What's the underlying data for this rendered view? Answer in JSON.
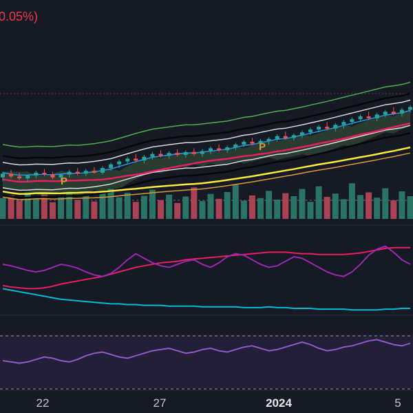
{
  "header": {
    "change_text": "0.05%)",
    "change_color": "#f23645"
  },
  "chart_data": {
    "type": "candlestick",
    "x_labels": [
      {
        "label": "22",
        "bold": false
      },
      {
        "label": "27",
        "bold": false
      },
      {
        "label": "2024",
        "bold": true
      },
      {
        "label": "5",
        "bold": false
      }
    ],
    "pivot_markers": [
      "P",
      "P"
    ],
    "colors": {
      "background": "#161a25",
      "up": "#26a69a",
      "down": "#ef5350",
      "vol_up": "#2e7d6b",
      "vol_down": "#b9485a",
      "ma_blue": "#2196f3",
      "ma_red": "#e91e63",
      "ma_white": "#d9dbe0",
      "ma_black": "#05070b",
      "ma_yellow": "#ffeb3b",
      "green_line": "#4caf50",
      "orange": "#d99a3a",
      "stoch_pink": "#e91e63",
      "stoch_purple": "#9c27b0",
      "cyan": "#00bcd4",
      "rsi_purple": "#8e5cc8"
    },
    "price_candles": [
      [
        40.0,
        40.6,
        39.6,
        40.4
      ],
      [
        40.4,
        40.8,
        39.9,
        40.1
      ],
      [
        40.1,
        40.5,
        39.7,
        39.9
      ],
      [
        39.9,
        40.3,
        39.5,
        40.2
      ],
      [
        40.2,
        40.7,
        39.9,
        40.5
      ],
      [
        40.5,
        40.9,
        40.1,
        40.3
      ],
      [
        40.3,
        40.6,
        39.8,
        40.0
      ],
      [
        40.0,
        40.4,
        39.6,
        40.3
      ],
      [
        40.3,
        40.8,
        40.0,
        40.6
      ],
      [
        40.6,
        41.0,
        40.2,
        40.4
      ],
      [
        40.4,
        40.9,
        40.1,
        40.7
      ],
      [
        40.7,
        41.1,
        40.4,
        40.5
      ],
      [
        40.5,
        41.2,
        40.3,
        41.0
      ],
      [
        41.0,
        41.6,
        40.7,
        41.4
      ],
      [
        41.4,
        41.9,
        41.0,
        41.7
      ],
      [
        41.7,
        42.2,
        41.4,
        42.0
      ],
      [
        42.0,
        42.5,
        41.6,
        41.8
      ],
      [
        41.8,
        42.4,
        41.5,
        42.2
      ],
      [
        42.2,
        42.7,
        41.9,
        42.5
      ],
      [
        42.5,
        42.9,
        42.1,
        42.3
      ],
      [
        42.3,
        42.8,
        42.0,
        42.6
      ],
      [
        42.6,
        43.0,
        42.2,
        42.4
      ],
      [
        42.4,
        42.9,
        42.1,
        42.7
      ],
      [
        42.7,
        43.1,
        42.3,
        42.5
      ],
      [
        42.5,
        43.0,
        42.2,
        42.8
      ],
      [
        42.8,
        43.3,
        42.5,
        43.1
      ],
      [
        43.1,
        43.5,
        42.7,
        42.9
      ],
      [
        42.9,
        43.4,
        42.6,
        43.2
      ],
      [
        43.2,
        43.7,
        42.9,
        43.5
      ],
      [
        43.5,
        44.0,
        43.2,
        43.8
      ],
      [
        43.8,
        44.2,
        43.4,
        43.6
      ],
      [
        43.6,
        44.1,
        43.3,
        43.9
      ],
      [
        43.9,
        44.3,
        43.5,
        44.1
      ],
      [
        44.1,
        44.6,
        43.8,
        44.4
      ],
      [
        44.4,
        44.9,
        44.0,
        44.2
      ],
      [
        44.2,
        44.7,
        43.9,
        44.5
      ],
      [
        44.5,
        45.0,
        44.2,
        44.8
      ],
      [
        44.8,
        45.3,
        44.5,
        45.1
      ],
      [
        45.1,
        45.6,
        44.8,
        45.4
      ],
      [
        45.4,
        45.9,
        45.0,
        45.2
      ],
      [
        45.2,
        45.8,
        44.9,
        45.6
      ],
      [
        45.6,
        46.1,
        45.2,
        45.9
      ],
      [
        45.9,
        46.4,
        45.6,
        46.2
      ],
      [
        46.2,
        46.7,
        45.9,
        46.5
      ],
      [
        46.5,
        47.0,
        46.1,
        46.3
      ],
      [
        46.3,
        46.9,
        46.0,
        46.7
      ],
      [
        46.7,
        47.2,
        46.4,
        47.0
      ],
      [
        47.0,
        47.5,
        46.6,
        46.8
      ],
      [
        46.8,
        47.4,
        46.5,
        47.2
      ],
      [
        47.2,
        47.7,
        46.9,
        47.5
      ]
    ],
    "volume": [
      0.55,
      0.62,
      0.48,
      0.7,
      0.52,
      0.66,
      0.44,
      0.58,
      0.72,
      0.5,
      0.63,
      0.46,
      0.74,
      0.8,
      0.57,
      0.69,
      0.45,
      0.61,
      0.77,
      0.5,
      0.64,
      0.42,
      0.59,
      0.83,
      0.47,
      0.66,
      0.53,
      0.71,
      0.9,
      0.48,
      0.62,
      0.55,
      0.74,
      0.51,
      0.68,
      0.6,
      0.79,
      0.45,
      0.86,
      0.58,
      0.67,
      0.52,
      0.94,
      0.63,
      0.7,
      0.56,
      0.81,
      0.49,
      0.73,
      0.6
    ],
    "indicator_series": {
      "stoch_k": [
        60,
        58,
        55,
        52,
        50,
        52,
        56,
        60,
        58,
        55,
        50,
        46,
        44,
        48,
        56,
        66,
        74,
        68,
        62,
        58,
        56,
        60,
        64,
        66,
        60,
        56,
        62,
        70,
        74,
        72,
        66,
        60,
        56,
        58,
        64,
        70,
        68,
        62,
        56,
        50,
        46,
        44,
        50,
        60,
        72,
        80,
        84,
        76,
        66,
        60
      ],
      "stoch_d": [
        32,
        30,
        29,
        28,
        28,
        29,
        31,
        34,
        36,
        38,
        40,
        42,
        44,
        47,
        50,
        53,
        56,
        58,
        60,
        62,
        63,
        64,
        66,
        67,
        68,
        69,
        70,
        71,
        72,
        73,
        74,
        75,
        76,
        76,
        76,
        75,
        74,
        74,
        73,
        73,
        73,
        73,
        74,
        75,
        77,
        79,
        81,
        82,
        82,
        82
      ],
      "cyan": [
        46,
        44,
        42,
        40,
        38,
        36,
        34,
        32,
        31,
        30,
        29,
        28,
        27,
        26,
        26,
        25,
        25,
        24,
        24,
        24,
        23,
        23,
        23,
        23,
        22,
        22,
        22,
        22,
        22,
        21,
        21,
        21,
        22,
        21,
        21,
        20,
        20,
        20,
        19,
        19,
        19,
        19,
        18,
        18,
        18,
        18,
        19,
        19,
        20,
        20
      ],
      "rsi": [
        40,
        38,
        36,
        38,
        42,
        46,
        44,
        40,
        38,
        42,
        48,
        52,
        54,
        50,
        46,
        44,
        48,
        52,
        56,
        58,
        60,
        56,
        52,
        54,
        58,
        60,
        56,
        54,
        58,
        62,
        64,
        60,
        56,
        58,
        62,
        66,
        70,
        66,
        60,
        56,
        58,
        62,
        64,
        68,
        72,
        74,
        70,
        66,
        64,
        68
      ]
    }
  }
}
